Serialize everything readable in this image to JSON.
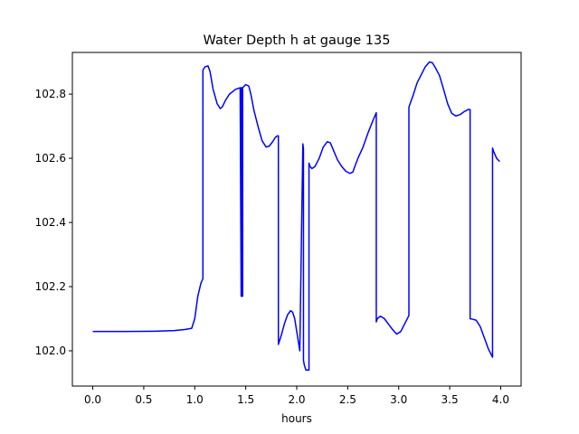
{
  "chart_data": {
    "type": "line",
    "title": "Water Depth h at gauge 135",
    "xlabel": "hours",
    "ylabel": "",
    "xlim": [
      -0.2,
      4.2
    ],
    "ylim": [
      101.89,
      102.93
    ],
    "x_ticks": [
      0.0,
      0.5,
      1.0,
      1.5,
      2.0,
      2.5,
      3.0,
      3.5,
      4.0
    ],
    "x_tick_labels": [
      "0.0",
      "0.5",
      "1.0",
      "1.5",
      "2.0",
      "2.5",
      "3.0",
      "3.5",
      "4.0"
    ],
    "y_ticks": [
      102.0,
      102.2,
      102.4,
      102.6,
      102.8
    ],
    "y_tick_labels": [
      "102.0",
      "102.2",
      "102.4",
      "102.6",
      "102.8"
    ],
    "grid": false,
    "legend": "none",
    "series": [
      {
        "color": "#0000ff",
        "x": [
          0.0,
          0.3,
          0.6,
          0.8,
          0.9,
          0.97,
          1.0,
          1.03,
          1.06,
          1.08,
          1.08,
          1.1,
          1.13,
          1.15,
          1.18,
          1.22,
          1.25,
          1.27,
          1.3,
          1.34,
          1.4,
          1.445,
          1.455,
          1.455,
          1.462,
          1.462,
          1.47,
          1.47,
          1.5,
          1.53,
          1.55,
          1.58,
          1.62,
          1.66,
          1.7,
          1.73,
          1.76,
          1.79,
          1.81,
          1.82,
          1.82,
          1.85,
          1.88,
          1.91,
          1.94,
          1.96,
          1.98,
          2.0,
          2.03,
          2.06,
          2.066,
          2.066,
          2.075,
          2.09,
          2.1,
          2.12,
          2.12,
          2.13,
          2.15,
          2.18,
          2.22,
          2.26,
          2.3,
          2.33,
          2.36,
          2.4,
          2.44,
          2.48,
          2.52,
          2.55,
          2.57,
          2.6,
          2.65,
          2.7,
          2.75,
          2.78,
          2.78,
          2.79,
          2.82,
          2.86,
          2.9,
          2.94,
          2.98,
          3.02,
          3.06,
          3.1,
          3.1,
          3.14,
          3.18,
          3.22,
          3.26,
          3.3,
          3.33,
          3.36,
          3.4,
          3.44,
          3.48,
          3.52,
          3.56,
          3.6,
          3.64,
          3.68,
          3.7,
          3.7,
          3.73,
          3.76,
          3.8,
          3.84,
          3.88,
          3.92,
          3.92,
          3.93,
          3.96,
          3.99
        ],
        "y": [
          102.06,
          102.06,
          102.061,
          102.063,
          102.066,
          102.07,
          102.1,
          102.17,
          102.21,
          102.225,
          102.875,
          102.885,
          102.888,
          102.87,
          102.815,
          102.77,
          102.755,
          102.76,
          102.78,
          102.8,
          102.815,
          102.82,
          102.17,
          102.82,
          102.82,
          102.17,
          102.17,
          102.82,
          102.83,
          102.825,
          102.8,
          102.75,
          102.7,
          102.655,
          102.635,
          102.638,
          102.65,
          102.665,
          102.67,
          102.67,
          102.02,
          102.05,
          102.085,
          102.112,
          102.125,
          102.12,
          102.1,
          102.06,
          102.0,
          102.645,
          102.63,
          101.97,
          101.955,
          101.94,
          101.94,
          101.94,
          102.585,
          102.575,
          102.568,
          102.575,
          102.6,
          102.635,
          102.652,
          102.648,
          102.625,
          102.595,
          102.575,
          102.56,
          102.553,
          102.557,
          102.575,
          102.6,
          102.635,
          102.68,
          102.72,
          102.742,
          102.09,
          102.1,
          102.108,
          102.1,
          102.083,
          102.066,
          102.052,
          102.06,
          102.085,
          102.11,
          102.76,
          102.795,
          102.835,
          102.86,
          102.885,
          102.9,
          102.898,
          102.882,
          102.858,
          102.815,
          102.77,
          102.74,
          102.732,
          102.736,
          102.745,
          102.752,
          102.752,
          102.1,
          102.098,
          102.095,
          102.075,
          102.04,
          102.005,
          101.98,
          102.632,
          102.622,
          102.6,
          102.59
        ]
      }
    ]
  }
}
